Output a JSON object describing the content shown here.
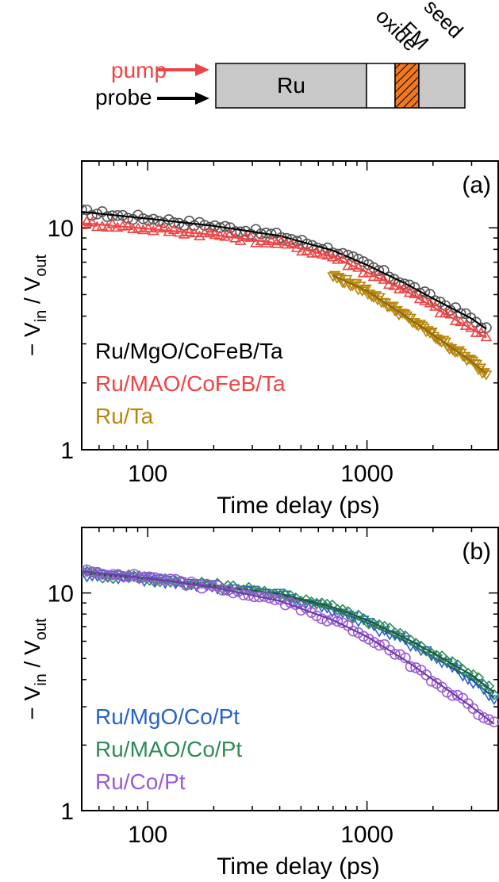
{
  "schematic": {
    "pump_label": "pump",
    "probe_label": "probe",
    "ru_label": "Ru",
    "oxide_label": "oxide",
    "fm_label": "FM",
    "seed_label": "seed",
    "colors": {
      "pump": "#ef4444",
      "probe": "#000000",
      "layer": "#c8c8c8",
      "fm": "#f07820"
    }
  },
  "chart_data": [
    {
      "type": "scatter",
      "panel_label": "(a)",
      "xscale": "log",
      "yscale": "log",
      "xlim": [
        50,
        4000
      ],
      "ylim": [
        1,
        20
      ],
      "xticks": [
        100,
        1000
      ],
      "xtick_labels": [
        "100",
        "1000"
      ],
      "yticks": [
        1,
        10
      ],
      "ytick_labels": [
        "1",
        "10"
      ],
      "xlabel": "Time delay (ps)",
      "ylabel_prefix": "− V",
      "ylabel_sub1": "in",
      "ylabel_mid": " / V",
      "ylabel_sub2": "out",
      "series": [
        {
          "name": "Ru/MgO/CoFeB/Ta",
          "marker": "circle",
          "color": "#555555",
          "fit_color": "#000000",
          "fit": [
            [
              50,
              11.8
            ],
            [
              100,
              11.0
            ],
            [
              200,
              10.2
            ],
            [
              400,
              9.2
            ],
            [
              700,
              7.9
            ],
            [
              1000,
              6.8
            ],
            [
              1500,
              5.6
            ],
            [
              2000,
              4.8
            ],
            [
              3000,
              3.9
            ],
            [
              3500,
              3.5
            ]
          ]
        },
        {
          "name": "Ru/MAO/CoFeB/Ta",
          "marker": "triangle-up",
          "color": "#ef4444",
          "fit_color": "#ef4444",
          "fit": [
            [
              50,
              10.5
            ],
            [
              100,
              9.9
            ],
            [
              200,
              9.3
            ],
            [
              400,
              8.5
            ],
            [
              700,
              7.4
            ],
            [
              1000,
              6.3
            ],
            [
              1500,
              5.2
            ],
            [
              2000,
              4.4
            ],
            [
              3000,
              3.5
            ],
            [
              3500,
              3.2
            ]
          ]
        },
        {
          "name": "Ru/Ta",
          "marker": "triangle-down",
          "color": "#b8860b",
          "fit_color": "#8b6914",
          "fit": [
            [
              700,
              6.1
            ],
            [
              1000,
              5.2
            ],
            [
              1500,
              4.0
            ],
            [
              2000,
              3.3
            ],
            [
              3000,
              2.5
            ],
            [
              3500,
              2.2
            ]
          ]
        }
      ]
    },
    {
      "type": "scatter",
      "panel_label": "(b)",
      "xscale": "log",
      "yscale": "log",
      "xlim": [
        50,
        4000
      ],
      "ylim": [
        1,
        20
      ],
      "xticks": [
        100,
        1000
      ],
      "xtick_labels": [
        "100",
        "1000"
      ],
      "yticks": [
        1,
        10
      ],
      "ytick_labels": [
        "1",
        "10"
      ],
      "xlabel": "Time delay (ps)",
      "ylabel_prefix": "− V",
      "ylabel_sub1": "in",
      "ylabel_mid": " / V",
      "ylabel_sub2": "out",
      "series": [
        {
          "name": "Ru/MgO/Co/Pt",
          "marker": "triangle-down",
          "color": "#2563c9",
          "fit_color": "#1f4e8c",
          "fit": [
            [
              50,
              12.3
            ],
            [
              100,
              11.6
            ],
            [
              200,
              10.8
            ],
            [
              400,
              9.8
            ],
            [
              700,
              8.4
            ],
            [
              1000,
              7.3
            ],
            [
              1500,
              6.0
            ],
            [
              2000,
              5.1
            ],
            [
              3000,
              4.0
            ],
            [
              3800,
              3.3
            ]
          ]
        },
        {
          "name": "Ru/MAO/Co/Pt",
          "marker": "diamond",
          "color": "#2e8b57",
          "fit_color": "#1f5a3a",
          "fit": [
            [
              50,
              12.3
            ],
            [
              100,
              11.6
            ],
            [
              200,
              10.8
            ],
            [
              400,
              9.9
            ],
            [
              700,
              8.6
            ],
            [
              1000,
              7.5
            ],
            [
              1500,
              6.2
            ],
            [
              2000,
              5.3
            ],
            [
              3000,
              4.2
            ],
            [
              3800,
              3.5
            ]
          ]
        },
        {
          "name": "Ru/Co/Pt",
          "marker": "circle",
          "color": "#9b59d6",
          "fit_color": "#6b3fa0",
          "fit": [
            [
              50,
              12.6
            ],
            [
              100,
              11.7
            ],
            [
              200,
              10.6
            ],
            [
              400,
              9.2
            ],
            [
              700,
              7.5
            ],
            [
              1000,
              6.3
            ],
            [
              1500,
              4.9
            ],
            [
              2000,
              4.0
            ],
            [
              3000,
              3.0
            ],
            [
              3800,
              2.5
            ]
          ]
        }
      ]
    }
  ]
}
